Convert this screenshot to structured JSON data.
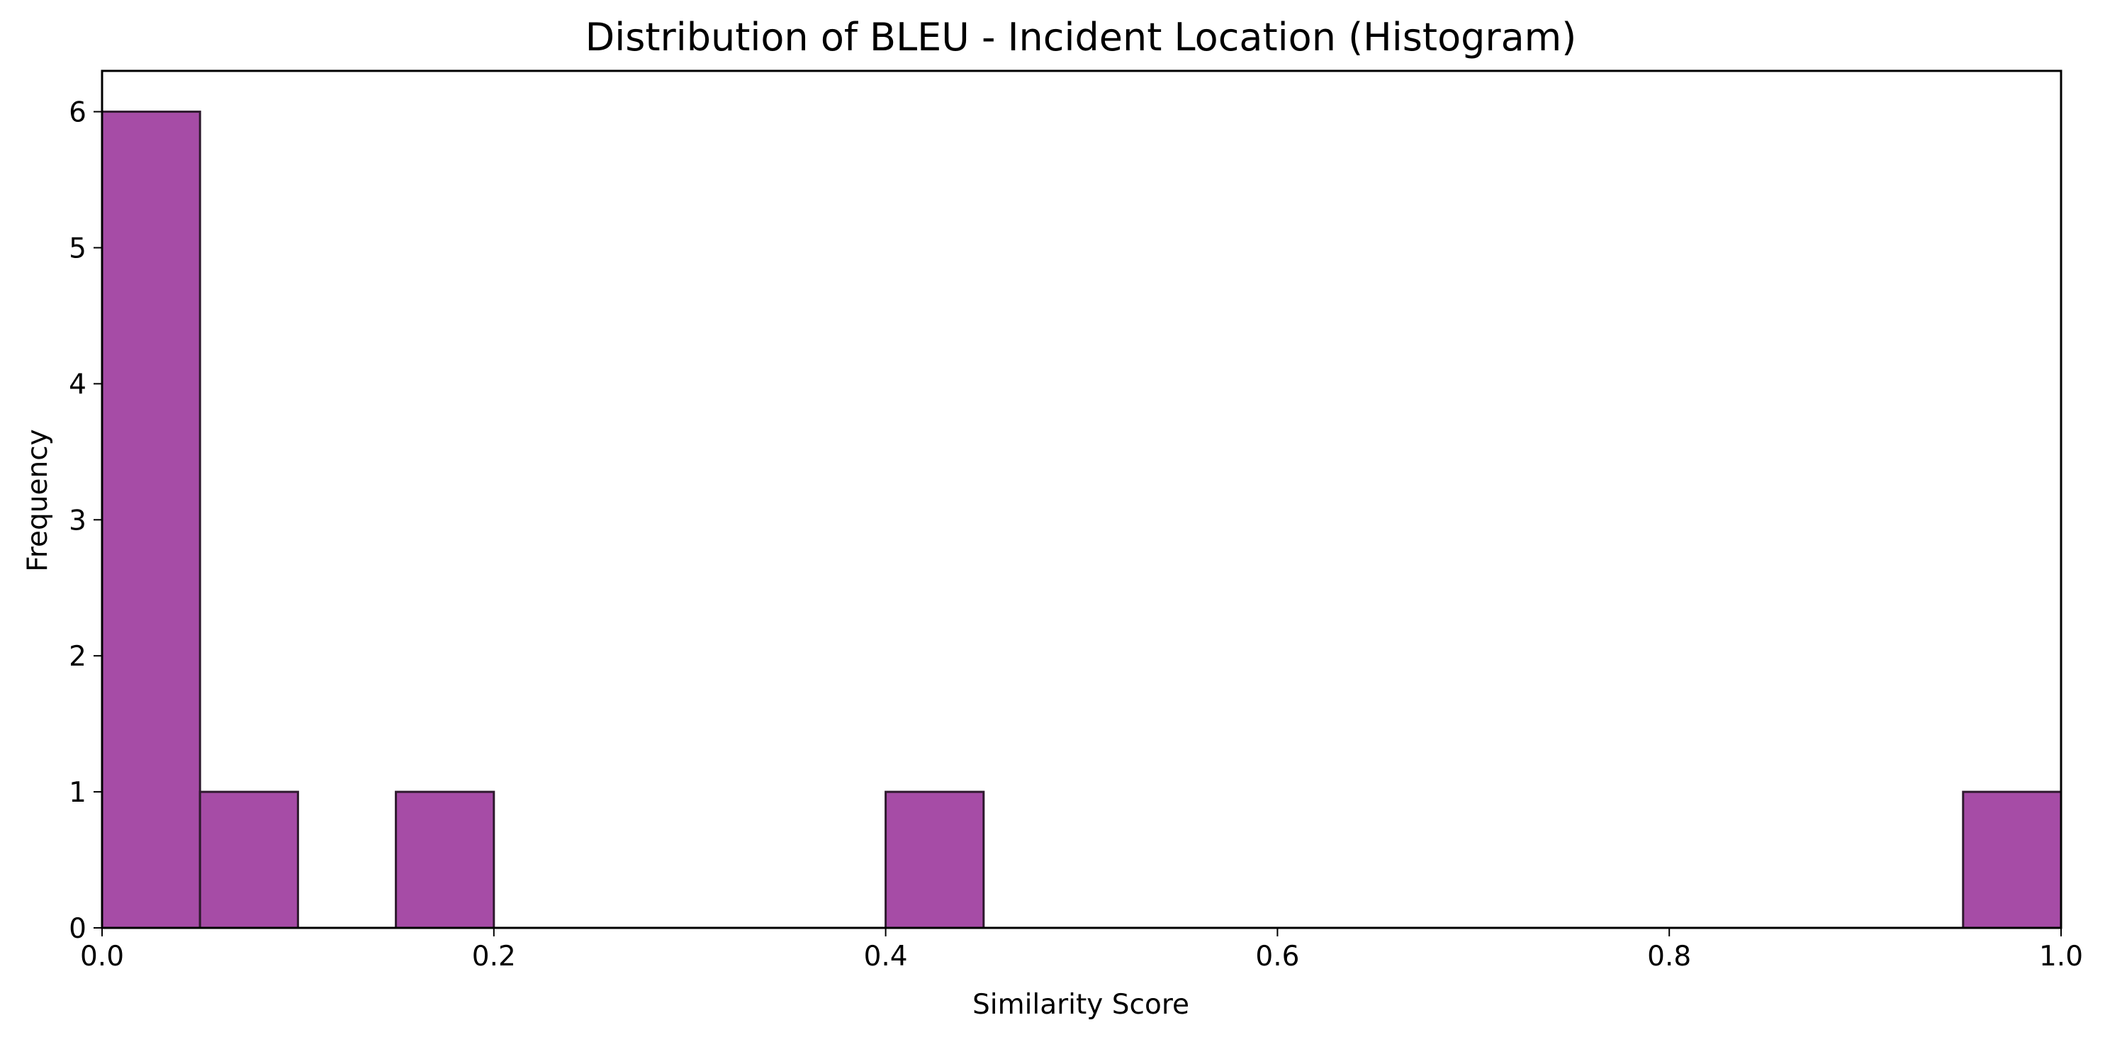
{
  "chart_data": {
    "type": "bar",
    "title": "Distribution of BLEU - Incident Location (Histogram)",
    "xlabel": "Similarity Score",
    "ylabel": "Frequency",
    "xlim": [
      0,
      1
    ],
    "ylim": [
      0,
      6.3
    ],
    "xticks": [
      "0.0",
      "0.2",
      "0.4",
      "0.6",
      "0.8",
      "1.0"
    ],
    "yticks": [
      "0",
      "1",
      "2",
      "3",
      "4",
      "5",
      "6"
    ],
    "bins": [
      {
        "start": 0.0,
        "end": 0.05,
        "value": 6
      },
      {
        "start": 0.05,
        "end": 0.1,
        "value": 1
      },
      {
        "start": 0.15,
        "end": 0.2,
        "value": 1
      },
      {
        "start": 0.4,
        "end": 0.45,
        "value": 1
      },
      {
        "start": 0.95,
        "end": 1.0,
        "value": 1
      }
    ],
    "bar_color": "#a64ca6",
    "bar_edge_color": "#2e1a2e",
    "grid": false,
    "legend": "none"
  }
}
